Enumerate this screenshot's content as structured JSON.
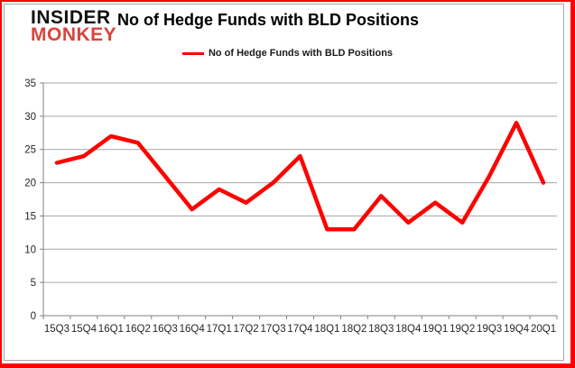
{
  "logo": {
    "line1": "INSIDER",
    "line2": "MONKEY"
  },
  "title": "No of Hedge Funds with BLD Positions",
  "legend": {
    "label": "No of Hedge Funds with BLD Positions"
  },
  "colors": {
    "series_line": "#FF0000",
    "legend_swatch": "#E00000",
    "logo_red": "#D8453E",
    "frame_red": "#FE0000",
    "gridline": "#A6A6A6",
    "axis": "#808080",
    "tick_text": "#262626"
  },
  "chart_data": {
    "type": "line",
    "title": "No of Hedge Funds with BLD Positions",
    "categories": [
      "15Q3",
      "15Q4",
      "16Q1",
      "16Q2",
      "16Q3",
      "16Q4",
      "17Q1",
      "17Q2",
      "17Q3",
      "17Q4",
      "18Q1",
      "18Q2",
      "18Q3",
      "18Q4",
      "19Q1",
      "19Q2",
      "19Q3",
      "19Q4",
      "20Q1"
    ],
    "series": [
      {
        "name": "No of Hedge Funds with BLD Positions",
        "values": [
          23,
          24,
          27,
          26,
          21,
          16,
          19,
          17,
          20,
          24,
          13,
          13,
          18,
          14,
          17,
          14,
          21,
          29,
          20
        ]
      }
    ],
    "xlabel": "",
    "ylabel": "",
    "ylim": [
      0,
      35
    ],
    "yticks": [
      0,
      5,
      10,
      15,
      20,
      25,
      30,
      35
    ],
    "grid": true,
    "legend_position": "top"
  }
}
